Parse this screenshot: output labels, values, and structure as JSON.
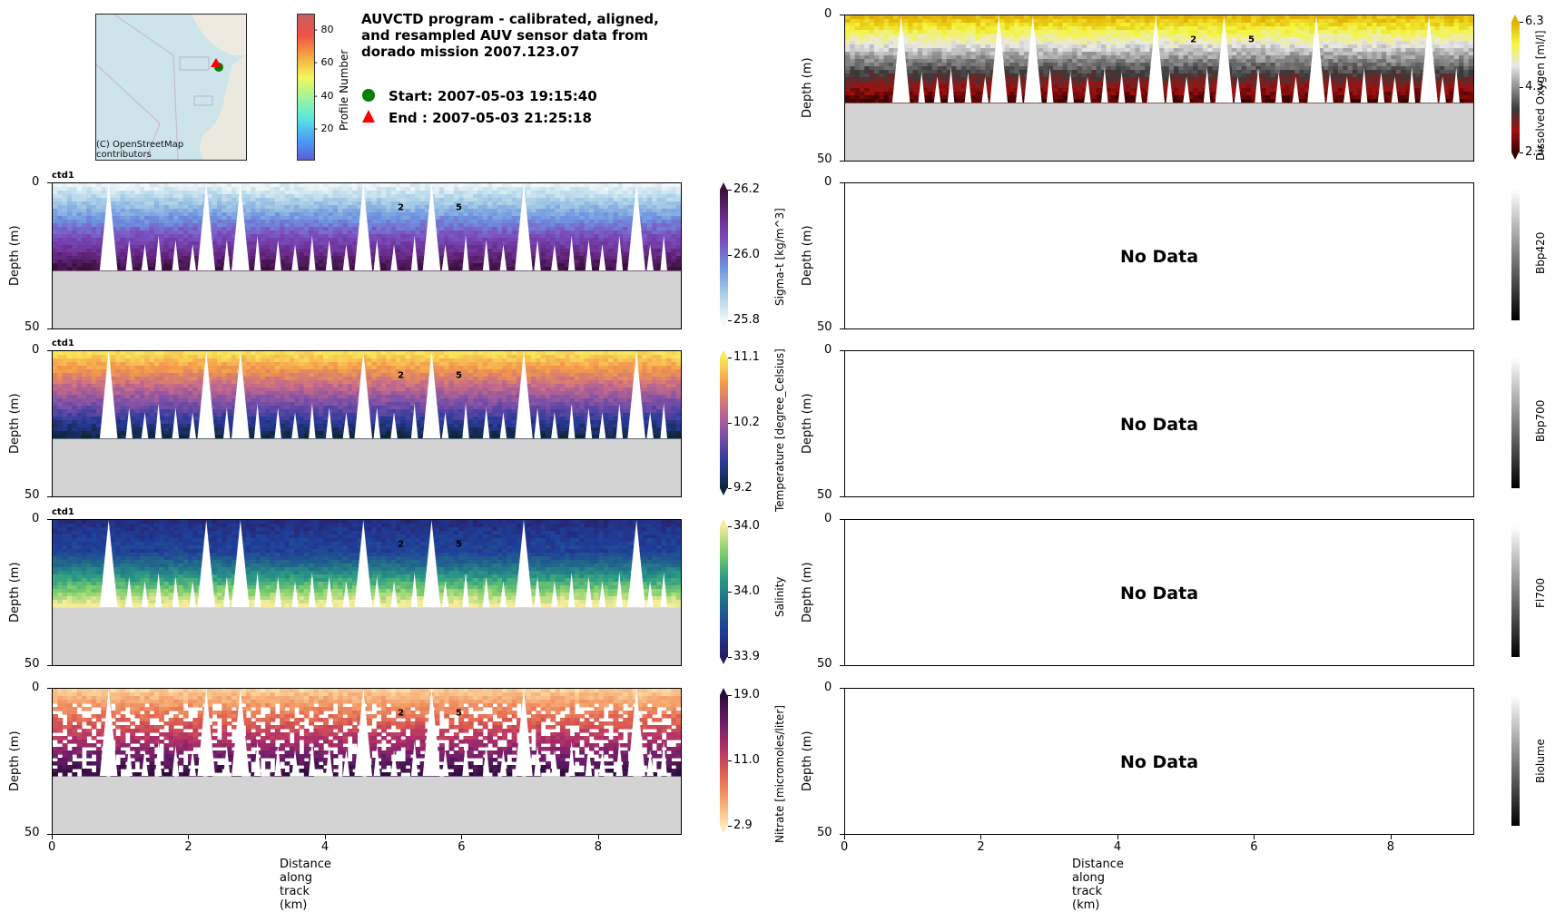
{
  "header": {
    "title_lines": [
      "AUVCTD program - calibrated, aligned,",
      "and resampled AUV sensor data from",
      "dorado mission 2007.123.07"
    ],
    "start_label": "Start: 2007-05-03 19:15:40",
    "end_label": "End  : 2007-05-03 21:25:18",
    "start_marker_color": "#008000",
    "end_marker_color": "#ff0000"
  },
  "map": {
    "credit_line1": "(C) OpenStreetMap",
    "credit_line2": "contributors",
    "profile_colorbar": {
      "label": "Profile Number",
      "ticks": [
        "80",
        "60",
        "40",
        "20"
      ],
      "range": [
        1,
        88
      ]
    }
  },
  "chart_data": [
    {
      "type": "heatmap",
      "id": "sigma_t",
      "panel_tag": "ctd1",
      "variable": "Sigma-t [kg/m^3]",
      "xlabel": "",
      "ylabel": "Depth (m)",
      "xlim": [
        0,
        9.2
      ],
      "ylim": [
        50,
        0
      ],
      "yticks": [
        "0",
        "50"
      ],
      "colorbar_ticks": [
        "26.2",
        "26.0",
        "25.8"
      ],
      "colorbar_range": [
        25.8,
        26.2
      ],
      "colormap": [
        "#f0f8fa",
        "#a9cfe6",
        "#6f95e0",
        "#7a4fbf",
        "#6a2a8a",
        "#3a0f3a"
      ],
      "bottom_depth": 30,
      "markers": [
        {
          "x": 5.1,
          "depth": 8,
          "label": "2"
        },
        {
          "x": 5.95,
          "depth": 8,
          "label": "5"
        }
      ]
    },
    {
      "type": "heatmap",
      "id": "temperature",
      "panel_tag": "ctd1",
      "variable": "Temperature [degree_Celsius]",
      "ylabel": "Depth (m)",
      "xlim": [
        0,
        9.2
      ],
      "ylim": [
        50,
        0
      ],
      "yticks": [
        "0",
        "50"
      ],
      "colorbar_ticks": [
        "11.1",
        "10.2",
        "9.2"
      ],
      "colorbar_range": [
        9.2,
        11.1
      ],
      "colormap": [
        "#0d2638",
        "#2b3a9a",
        "#7a4fa8",
        "#c56a8a",
        "#f59a4a",
        "#f8e85a"
      ],
      "bottom_depth": 30,
      "markers": [
        {
          "x": 5.1,
          "depth": 8,
          "label": "2"
        },
        {
          "x": 5.95,
          "depth": 8,
          "label": "5"
        }
      ]
    },
    {
      "type": "heatmap",
      "id": "salinity",
      "panel_tag": "ctd1",
      "variable": "Salinity",
      "ylabel": "Depth (m)",
      "xlim": [
        0,
        9.2
      ],
      "ylim": [
        50,
        0
      ],
      "yticks": [
        "0",
        "50"
      ],
      "colorbar_ticks": [
        "34.0",
        "34.0",
        "33.9"
      ],
      "colorbar_range": [
        33.9,
        34.0
      ],
      "colormap": [
        "#2a1a5e",
        "#1f3e9a",
        "#21688a",
        "#2a9a86",
        "#7fcf6a",
        "#f6ec9a"
      ],
      "bottom_depth": 30,
      "markers": [
        {
          "x": 5.1,
          "depth": 8,
          "label": "2"
        },
        {
          "x": 5.95,
          "depth": 8,
          "label": "5"
        }
      ]
    },
    {
      "type": "heatmap",
      "id": "nitrate",
      "panel_tag": "",
      "variable": "Nitrate [micromoles/liter]",
      "xlabel": "Distance along track (km)",
      "ylabel": "Depth (m)",
      "xlim": [
        0,
        9.2
      ],
      "ylim": [
        50,
        0
      ],
      "xticks": [
        "0",
        "2",
        "4",
        "6",
        "8"
      ],
      "yticks": [
        "0",
        "50"
      ],
      "colorbar_ticks": [
        "19.0",
        "11.0",
        "2.9"
      ],
      "colorbar_range": [
        2.9,
        19.0
      ],
      "colormap": [
        "#fde9b4",
        "#f5a06a",
        "#e0604f",
        "#b03068",
        "#6a1c6a",
        "#2a0c3a"
      ],
      "bottom_depth": 30,
      "markers": [
        {
          "x": 5.1,
          "depth": 8,
          "label": "2"
        },
        {
          "x": 5.95,
          "depth": 8,
          "label": "5"
        }
      ]
    },
    {
      "type": "heatmap",
      "id": "dissolved_oxygen",
      "panel_tag": "",
      "variable": "Dissolved Oxygen [ml/l]",
      "ylabel": "Depth (m)",
      "xlim": [
        0,
        9.2
      ],
      "ylim": [
        50,
        0
      ],
      "yticks": [
        "0",
        "50"
      ],
      "colorbar_ticks": [
        "6.3",
        "4.3",
        "2.3"
      ],
      "colorbar_range": [
        2.3,
        6.3
      ],
      "colormap": [
        "#3a0000",
        "#a01010",
        "#3a3a3a",
        "#909090",
        "#e8e8e8",
        "#f5f53a",
        "#e0b000"
      ],
      "bottom_depth": 30,
      "markers": [
        {
          "x": 5.1,
          "depth": 8,
          "label": "2"
        },
        {
          "x": 5.95,
          "depth": 8,
          "label": "5"
        }
      ]
    },
    {
      "type": "heatmap",
      "id": "bbp420",
      "variable": "Bbp420",
      "ylabel": "Depth (m)",
      "xlim": [
        0,
        9.2
      ],
      "ylim": [
        50,
        0
      ],
      "yticks": [
        "0",
        "50"
      ],
      "no_data": "No Data"
    },
    {
      "type": "heatmap",
      "id": "bbp700",
      "variable": "Bbp700",
      "ylabel": "Depth (m)",
      "xlim": [
        0,
        9.2
      ],
      "ylim": [
        50,
        0
      ],
      "yticks": [
        "0",
        "50"
      ],
      "no_data": "No Data"
    },
    {
      "type": "heatmap",
      "id": "fl700",
      "variable": "Fl700",
      "ylabel": "Depth (m)",
      "xlim": [
        0,
        9.2
      ],
      "ylim": [
        50,
        0
      ],
      "yticks": [
        "0",
        "50"
      ],
      "no_data": "No Data"
    },
    {
      "type": "heatmap",
      "id": "biolume",
      "variable": "Biolume",
      "xlabel": "Distance along track (km)",
      "ylabel": "Depth (m)",
      "xlim": [
        0,
        9.2
      ],
      "ylim": [
        50,
        0
      ],
      "xticks": [
        "0",
        "2",
        "4",
        "6",
        "8"
      ],
      "yticks": [
        "0",
        "50"
      ],
      "no_data": "No Data"
    }
  ]
}
